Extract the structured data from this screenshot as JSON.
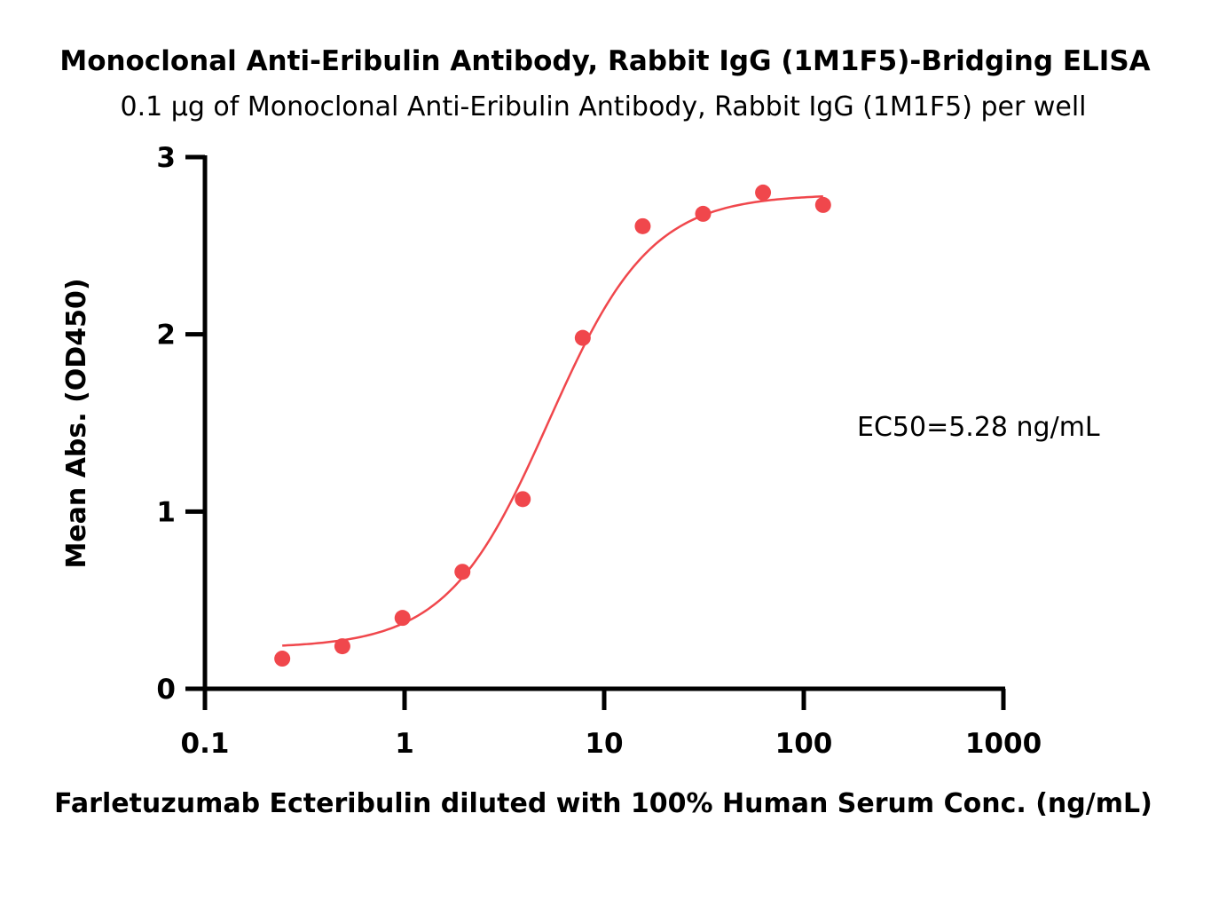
{
  "chart_data": {
    "type": "scatter",
    "title": "Monoclonal Anti-Eribulin Antibody, Rabbit IgG (1M1F5)-Bridging ELISA",
    "subtitle": "0.1 µg of Monoclonal Anti-Eribulin Antibody, Rabbit IgG (1M1F5) per well",
    "xlabel": "Farletuzumab Ecteribulin diluted with 100% Human Serum Conc. (ng/mL)",
    "ylabel": "Mean Abs. (OD450)",
    "xscale": "log",
    "xlim": [
      0.1,
      1000
    ],
    "ylim": [
      0,
      3
    ],
    "xticks": [
      0.1,
      1,
      10,
      100,
      1000
    ],
    "xtick_labels": [
      "0.1",
      "1",
      "10",
      "100",
      "1000"
    ],
    "yticks": [
      0,
      1,
      2,
      3
    ],
    "ytick_labels": [
      "0",
      "1",
      "2",
      "3"
    ],
    "grid": false,
    "annotation": "EC50=5.28 ng/mL",
    "color": "#f0474c",
    "series": [
      {
        "x": [
          0.244,
          0.488,
          0.977,
          1.95,
          3.91,
          7.81,
          15.6,
          31.3,
          62.5,
          125
        ],
        "y": [
          0.17,
          0.24,
          0.4,
          0.66,
          1.07,
          1.98,
          2.61,
          2.68,
          2.8,
          2.73
        ]
      }
    ],
    "fit": {
      "model": "4PL",
      "bottom": 0.23,
      "top": 2.79,
      "ec50": 5.28,
      "hill": 1.7,
      "x_range": [
        0.244,
        125
      ]
    }
  }
}
